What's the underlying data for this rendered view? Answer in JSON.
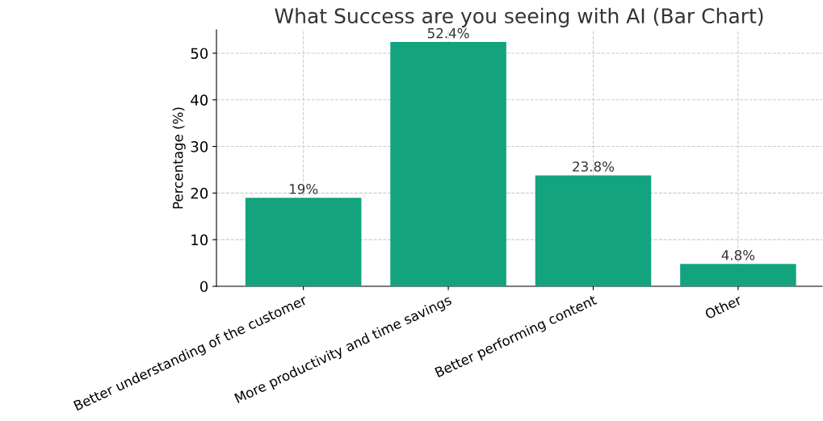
{
  "chart_data": {
    "type": "bar",
    "title": "What Success are you seeing with AI (Bar Chart)",
    "ylabel": "Percentage (%)",
    "categories": [
      "Better understanding of the customer",
      "More productivity and time savings",
      "Better performing content",
      "Other"
    ],
    "values": [
      19,
      52.4,
      23.8,
      4.8
    ],
    "value_labels": [
      "19%",
      "52.4%",
      "23.8%",
      "4.8%"
    ],
    "color": "#13a37f",
    "ylim": [
      0,
      55
    ],
    "yticks": [
      0,
      10,
      20,
      30,
      40,
      50
    ],
    "grid": true
  }
}
